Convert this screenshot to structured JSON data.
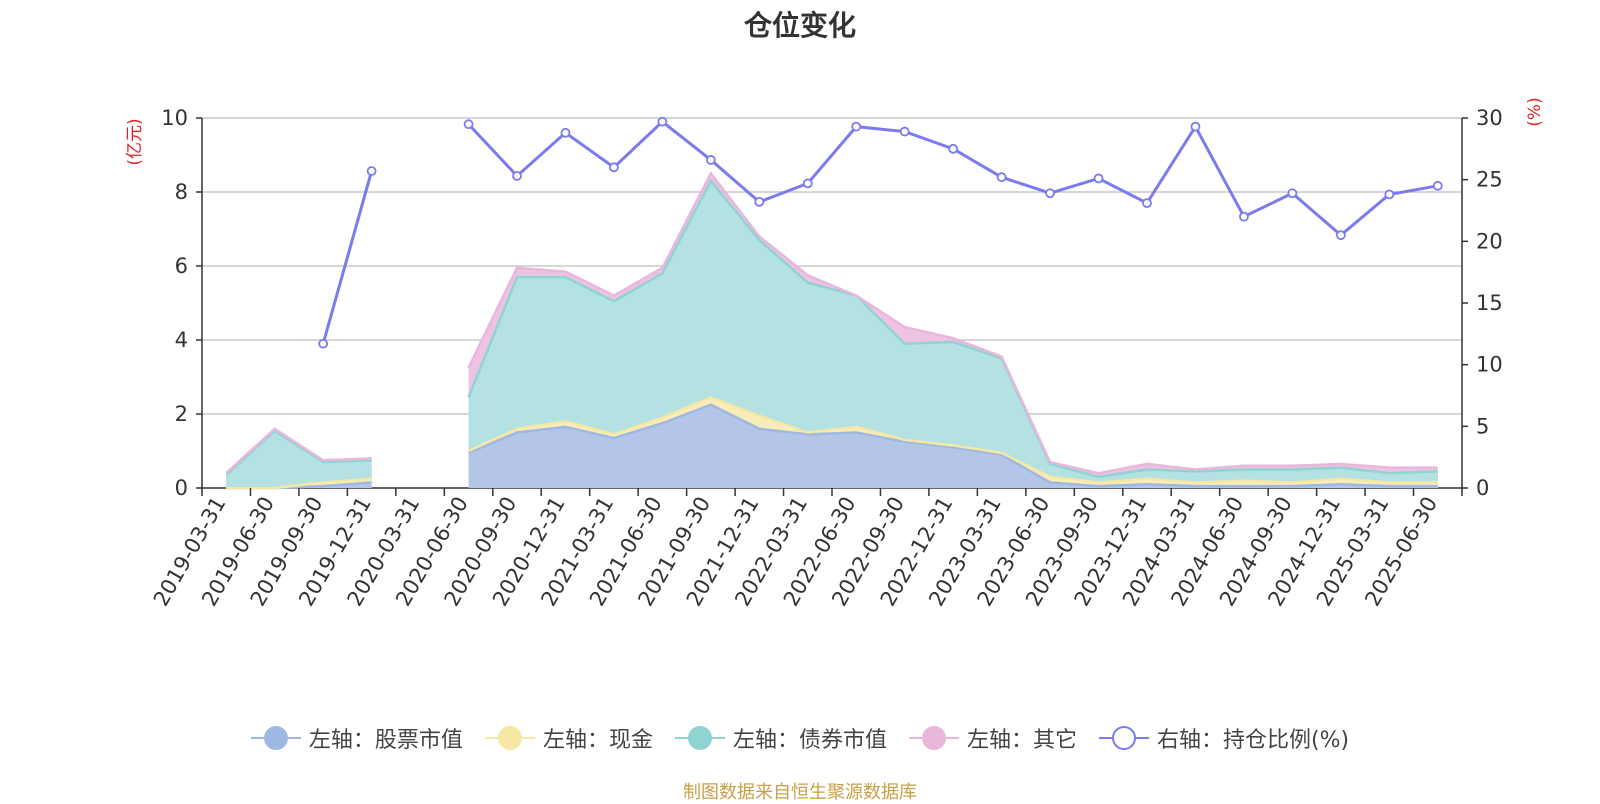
{
  "title": "仓位变化",
  "source_note": "制图数据来自恒生聚源数据库",
  "colors": {
    "stock": "#9fb8e2",
    "cash": "#f6e7a5",
    "bond": "#8fd3d3",
    "other": "#e8b7db",
    "ratio": "#7b7bed",
    "axis_unit": "#e02020"
  },
  "legend": [
    {
      "key": "stock",
      "label": "左轴：股票市值",
      "icon": "filled-circle-icon"
    },
    {
      "key": "cash",
      "label": "左轴：现金",
      "icon": "filled-circle-icon"
    },
    {
      "key": "bond",
      "label": "左轴：债券市值",
      "icon": "filled-circle-icon"
    },
    {
      "key": "other",
      "label": "左轴：其它",
      "icon": "filled-circle-icon"
    },
    {
      "key": "ratio",
      "label": "右轴：持仓比例(%)",
      "icon": "hollow-circle-icon"
    }
  ],
  "chart_data": {
    "type": "area",
    "title": "仓位变化",
    "stacked": true,
    "categories": [
      "2019-03-31",
      "2019-06-30",
      "2019-09-30",
      "2019-12-31",
      "2020-03-31",
      "2020-06-30",
      "2020-09-30",
      "2020-12-31",
      "2021-03-31",
      "2021-06-30",
      "2021-09-30",
      "2021-12-31",
      "2022-03-31",
      "2022-06-30",
      "2022-09-30",
      "2022-12-31",
      "2023-03-31",
      "2023-06-30",
      "2023-09-30",
      "2023-12-31",
      "2024-03-31",
      "2024-06-30",
      "2024-09-30",
      "2024-12-31",
      "2025-03-31",
      "2025-06-30"
    ],
    "y_left": {
      "label": "(亿元)",
      "range": [
        0,
        10
      ],
      "ticks": [
        0,
        2,
        4,
        6,
        8,
        10
      ]
    },
    "y_right": {
      "label": "(%)",
      "range": [
        0,
        30
      ],
      "ticks": [
        0,
        5,
        10,
        15,
        20,
        25,
        30
      ]
    },
    "series": [
      {
        "name": "左轴：股票市值",
        "axis": "left",
        "type": "area",
        "values": [
          0,
          0,
          0.05,
          0.15,
          null,
          0.95,
          1.5,
          1.65,
          1.35,
          1.75,
          2.25,
          1.6,
          1.45,
          1.5,
          1.25,
          1.1,
          0.9,
          0.15,
          0.05,
          0.1,
          0.05,
          0.05,
          0.05,
          0.1,
          0.05,
          0.05
        ]
      },
      {
        "name": "左轴：现金",
        "axis": "left",
        "type": "area",
        "values": [
          0,
          0,
          0.1,
          0.1,
          null,
          0.05,
          0.1,
          0.15,
          0.1,
          0.15,
          0.2,
          0.35,
          0.05,
          0.15,
          0.05,
          0.05,
          0.05,
          0.15,
          0.1,
          0.15,
          0.1,
          0.15,
          0.1,
          0.15,
          0.1,
          0.1
        ]
      },
      {
        "name": "左轴：债券市值",
        "axis": "left",
        "type": "area",
        "values": [
          0.35,
          1.55,
          0.55,
          0.5,
          null,
          1.45,
          4.1,
          3.9,
          3.6,
          3.9,
          5.85,
          4.75,
          4.05,
          3.55,
          2.6,
          2.8,
          2.55,
          0.35,
          0.15,
          0.25,
          0.3,
          0.3,
          0.35,
          0.3,
          0.25,
          0.3
        ]
      },
      {
        "name": "左轴：其它",
        "axis": "left",
        "type": "area",
        "values": [
          0.05,
          0.05,
          0.05,
          0.05,
          null,
          0.8,
          0.25,
          0.15,
          0.15,
          0.15,
          0.2,
          0.1,
          0.2,
          0.0,
          0.45,
          0.1,
          0.05,
          0.05,
          0.1,
          0.15,
          0.05,
          0.1,
          0.1,
          0.1,
          0.15,
          0.1
        ]
      },
      {
        "name": "右轴：持仓比例(%)",
        "axis": "right",
        "type": "line",
        "values": [
          null,
          null,
          11.7,
          25.7,
          null,
          29.5,
          25.3,
          28.8,
          26.0,
          29.7,
          26.6,
          23.2,
          24.7,
          29.3,
          28.9,
          27.5,
          25.2,
          23.9,
          25.1,
          23.1,
          29.3,
          22.0,
          23.9,
          20.5,
          23.8,
          24.5
        ]
      }
    ],
    "legend_position": "bottom",
    "grid": true
  }
}
